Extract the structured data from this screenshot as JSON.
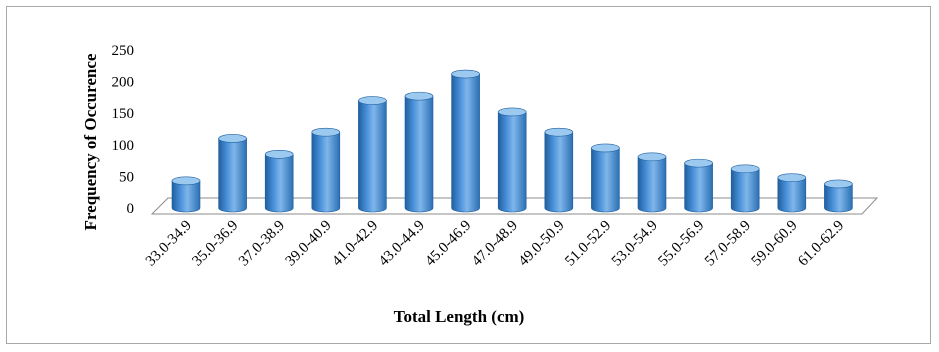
{
  "chart_data": {
    "type": "bar",
    "style": "3d-cylinder",
    "title": "",
    "xlabel": "Total Length (cm)",
    "ylabel": "Frequency of Occurence",
    "categories": [
      "33.0-34.9",
      "35.0-36.9",
      "37.0-38.9",
      "39.0-40.9",
      "41.0-42.9",
      "43.0-44.9",
      "45.0-46.9",
      "47.0-48.9",
      "49.0-50.9",
      "51.0-52.9",
      "53.0-54.9",
      "55.0-56.9",
      "57.0-58.9",
      "59.0-60.9",
      "61.0-62.9"
    ],
    "values": [
      43,
      110,
      85,
      120,
      170,
      177,
      212,
      152,
      120,
      95,
      81,
      71,
      62,
      48,
      38
    ],
    "ylim": [
      0,
      250
    ],
    "yticks": [
      "0",
      "50",
      "100",
      "150",
      "200",
      "250"
    ],
    "grid": false,
    "legend": "none",
    "colors": {
      "bar_fill": "#4a90d9",
      "bar_dark": "#1f5f9e",
      "bar_light": "#9cc9f0",
      "floor": "#ffffff",
      "floor_edge": "#8c8c8c",
      "frame": "#a8a8a8"
    }
  }
}
